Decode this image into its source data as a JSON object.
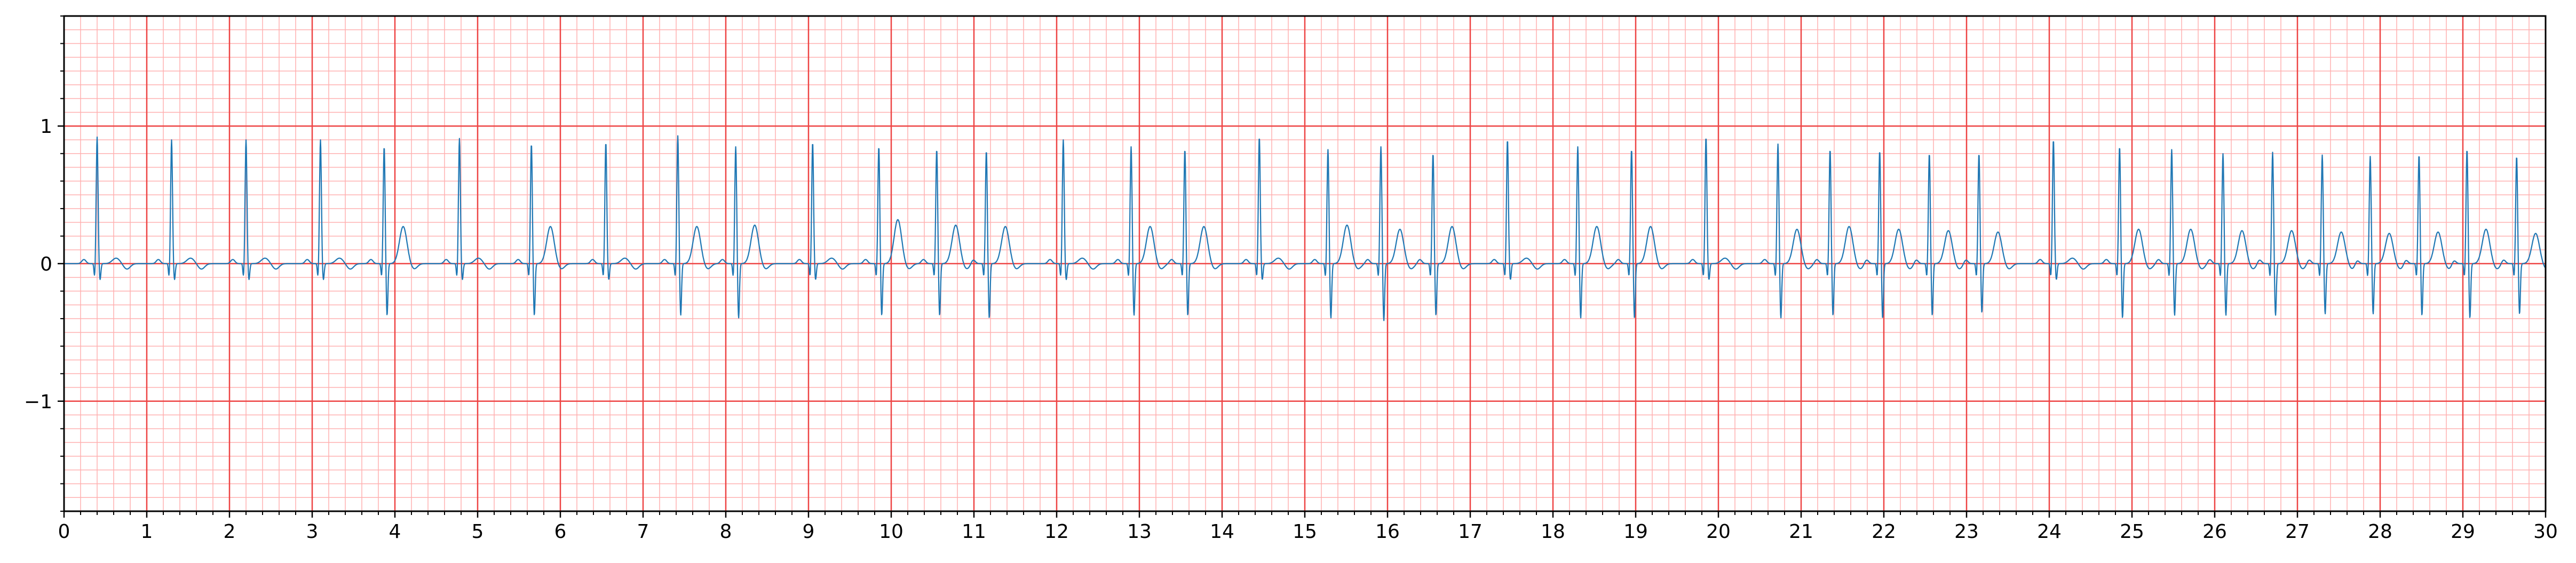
{
  "chart_data": {
    "type": "line",
    "title": "",
    "xlabel": "",
    "ylabel": "",
    "xlim": [
      0,
      30
    ],
    "ylim": [
      -1.8,
      1.8
    ],
    "x_ticks": [
      0,
      1,
      2,
      3,
      4,
      5,
      6,
      7,
      8,
      9,
      10,
      11,
      12,
      13,
      14,
      15,
      16,
      17,
      18,
      19,
      20,
      21,
      22,
      23,
      24,
      25,
      26,
      27,
      28,
      29,
      30
    ],
    "x_tick_labels": [
      "0",
      "1",
      "2",
      "3",
      "4",
      "5",
      "6",
      "7",
      "8",
      "9",
      "10",
      "11",
      "12",
      "13",
      "14",
      "15",
      "16",
      "17",
      "18",
      "19",
      "20",
      "21",
      "22",
      "23",
      "24",
      "25",
      "26",
      "27",
      "28",
      "29",
      "30"
    ],
    "y_ticks": [
      -1,
      0,
      1
    ],
    "y_tick_labels": [
      "−1",
      "0",
      "1"
    ],
    "grid": {
      "major": true,
      "minor": true,
      "major_x_step": 1,
      "major_y_step": 1,
      "minor_x_step": 0.2,
      "minor_y_step": 0.1,
      "major_color": "#ee4444",
      "minor_color": "#ffb0b0"
    },
    "series": [
      {
        "color": "#1f77b4",
        "sample_rate_hz": 100,
        "beats": [
          {
            "t": 0.4,
            "r": 0.92,
            "s": -0.12,
            "tw": 0.04
          },
          {
            "t": 1.3,
            "r": 0.9,
            "s": -0.12,
            "tw": 0.04
          },
          {
            "t": 2.2,
            "r": 0.9,
            "s": -0.12,
            "tw": 0.04
          },
          {
            "t": 3.1,
            "r": 0.9,
            "s": -0.12,
            "tw": 0.04
          },
          {
            "t": 3.87,
            "r": 0.85,
            "s": -0.38,
            "tw": 0.27
          },
          {
            "t": 4.78,
            "r": 0.91,
            "s": -0.12,
            "tw": 0.04
          },
          {
            "t": 5.65,
            "r": 0.87,
            "s": -0.38,
            "tw": 0.27
          },
          {
            "t": 6.55,
            "r": 0.88,
            "s": -0.12,
            "tw": 0.04
          },
          {
            "t": 7.42,
            "r": 0.93,
            "s": -0.38,
            "tw": 0.27
          },
          {
            "t": 8.12,
            "r": 0.85,
            "s": -0.4,
            "tw": 0.28
          },
          {
            "t": 9.05,
            "r": 0.88,
            "s": -0.12,
            "tw": 0.04
          },
          {
            "t": 9.85,
            "r": 0.85,
            "s": -0.38,
            "tw": 0.32
          },
          {
            "t": 10.55,
            "r": 0.83,
            "s": -0.38,
            "tw": 0.28
          },
          {
            "t": 11.15,
            "r": 0.82,
            "s": -0.4,
            "tw": 0.27
          },
          {
            "t": 12.08,
            "r": 0.9,
            "s": -0.12,
            "tw": 0.04
          },
          {
            "t": 12.9,
            "r": 0.85,
            "s": -0.38,
            "tw": 0.27
          },
          {
            "t": 13.55,
            "r": 0.83,
            "s": -0.38,
            "tw": 0.27
          },
          {
            "t": 14.45,
            "r": 0.92,
            "s": -0.12,
            "tw": 0.04
          },
          {
            "t": 15.28,
            "r": 0.83,
            "s": -0.4,
            "tw": 0.28
          },
          {
            "t": 15.92,
            "r": 0.85,
            "s": -0.42,
            "tw": 0.25
          },
          {
            "t": 16.55,
            "r": 0.8,
            "s": -0.38,
            "tw": 0.27
          },
          {
            "t": 17.45,
            "r": 0.9,
            "s": -0.12,
            "tw": 0.04
          },
          {
            "t": 18.3,
            "r": 0.85,
            "s": -0.4,
            "tw": 0.27
          },
          {
            "t": 18.95,
            "r": 0.83,
            "s": -0.4,
            "tw": 0.27
          },
          {
            "t": 19.85,
            "r": 0.92,
            "s": -0.12,
            "tw": 0.04
          },
          {
            "t": 20.72,
            "r": 0.87,
            "s": -0.4,
            "tw": 0.25
          },
          {
            "t": 21.35,
            "r": 0.83,
            "s": -0.38,
            "tw": 0.27
          },
          {
            "t": 21.95,
            "r": 0.82,
            "s": -0.4,
            "tw": 0.25
          },
          {
            "t": 22.55,
            "r": 0.8,
            "s": -0.38,
            "tw": 0.24
          },
          {
            "t": 23.15,
            "r": 0.8,
            "s": -0.36,
            "tw": 0.23
          },
          {
            "t": 24.05,
            "r": 0.9,
            "s": -0.12,
            "tw": 0.04
          },
          {
            "t": 24.85,
            "r": 0.85,
            "s": -0.4,
            "tw": 0.25
          },
          {
            "t": 25.48,
            "r": 0.83,
            "s": -0.38,
            "tw": 0.25
          },
          {
            "t": 26.1,
            "r": 0.8,
            "s": -0.38,
            "tw": 0.24
          },
          {
            "t": 26.7,
            "r": 0.81,
            "s": -0.38,
            "tw": 0.24
          },
          {
            "t": 27.3,
            "r": 0.79,
            "s": -0.37,
            "tw": 0.23
          },
          {
            "t": 27.88,
            "r": 0.78,
            "s": -0.37,
            "tw": 0.22
          },
          {
            "t": 28.47,
            "r": 0.79,
            "s": -0.38,
            "tw": 0.23
          },
          {
            "t": 29.05,
            "r": 0.83,
            "s": -0.4,
            "tw": 0.25
          },
          {
            "t": 29.65,
            "r": 0.78,
            "s": -0.37,
            "tw": 0.22
          }
        ]
      }
    ]
  }
}
